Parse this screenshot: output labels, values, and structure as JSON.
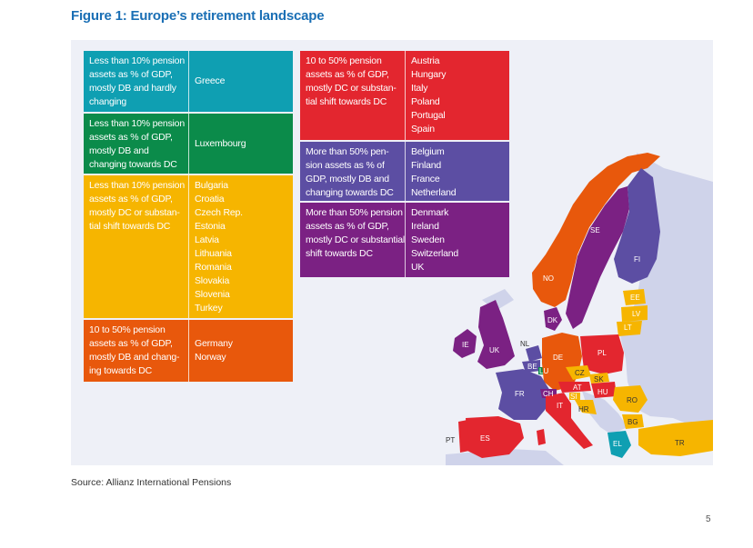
{
  "title": "Figure 1: Europe’s retirement landscape",
  "source": "Source: Allianz International Pensions",
  "page_number": "5",
  "colors": {
    "teal": "#0f9fb2",
    "green": "#0b8b4a",
    "yellow": "#f6b500",
    "orange": "#e8580c",
    "red": "#e3262f",
    "violet": "#5c4ea3",
    "purple": "#7b2183",
    "non_eu": "#cfd3ea",
    "title": "#1a6fb5"
  },
  "categories": [
    {
      "id": "teal",
      "desc": "Less than 10% pension assets as % of GDP, mostly DB and hardly changing",
      "countries": [
        "Greece"
      ]
    },
    {
      "id": "green",
      "desc": "Less than 10% pension assets as % of GDP, mostly DB and changing towards DC",
      "countries": [
        "Luxembourg"
      ]
    },
    {
      "id": "yellow",
      "desc": "Less than 10% pension assets as % of GDP, mostly DC or substan-tial shift towards DC",
      "countries": [
        "Bulgaria",
        "Croatia",
        "Czech Rep.",
        "Estonia",
        "Latvia",
        "Lithuania",
        "Romania",
        "Slovakia",
        "Slovenia",
        "Turkey"
      ]
    },
    {
      "id": "orange",
      "desc": "10 to 50% pension assets as % of GDP, mostly DB and chang-ing towards DC",
      "countries": [
        "Germany",
        "Norway"
      ]
    },
    {
      "id": "red",
      "desc": "10 to 50% pension assets as % of GDP, mostly DC or substan-tial shift towards DC",
      "countries": [
        "Austria",
        "Hungary",
        "Italy",
        "Poland",
        "Portugal",
        "Spain"
      ]
    },
    {
      "id": "violet",
      "desc": "More than 50% pen-sion assets as % of GDP, mostly DB and changing towards DC",
      "countries": [
        "Belgium",
        "Finland",
        "France",
        "Netherland"
      ]
    },
    {
      "id": "purple",
      "desc": "More than 50% pension assets as % of GDP, mostly DC or substantial shift towards DC",
      "countries": [
        "Denmark",
        "Ireland",
        "Sweden",
        "Switzerland",
        "UK"
      ]
    }
  ],
  "map_labels": [
    {
      "code": "NO",
      "cat": "orange"
    },
    {
      "code": "SE",
      "cat": "purple"
    },
    {
      "code": "FI",
      "cat": "violet"
    },
    {
      "code": "EE",
      "cat": "yellow"
    },
    {
      "code": "LV",
      "cat": "yellow"
    },
    {
      "code": "LT",
      "cat": "yellow"
    },
    {
      "code": "DK",
      "cat": "purple"
    },
    {
      "code": "IE",
      "cat": "purple"
    },
    {
      "code": "UK",
      "cat": "purple"
    },
    {
      "code": "NL",
      "cat": "violet"
    },
    {
      "code": "BE",
      "cat": "violet"
    },
    {
      "code": "LU",
      "cat": "green"
    },
    {
      "code": "DE",
      "cat": "orange"
    },
    {
      "code": "PL",
      "cat": "red"
    },
    {
      "code": "CZ",
      "cat": "yellow"
    },
    {
      "code": "SK",
      "cat": "yellow"
    },
    {
      "code": "AT",
      "cat": "red"
    },
    {
      "code": "HU",
      "cat": "red"
    },
    {
      "code": "FR",
      "cat": "violet"
    },
    {
      "code": "CH",
      "cat": "purple"
    },
    {
      "code": "SI",
      "cat": "yellow"
    },
    {
      "code": "IT",
      "cat": "red"
    },
    {
      "code": "HR",
      "cat": "yellow"
    },
    {
      "code": "RO",
      "cat": "yellow"
    },
    {
      "code": "BG",
      "cat": "yellow"
    },
    {
      "code": "PT",
      "cat": "red"
    },
    {
      "code": "ES",
      "cat": "red"
    },
    {
      "code": "EL",
      "cat": "teal"
    },
    {
      "code": "TR",
      "cat": "yellow"
    }
  ]
}
